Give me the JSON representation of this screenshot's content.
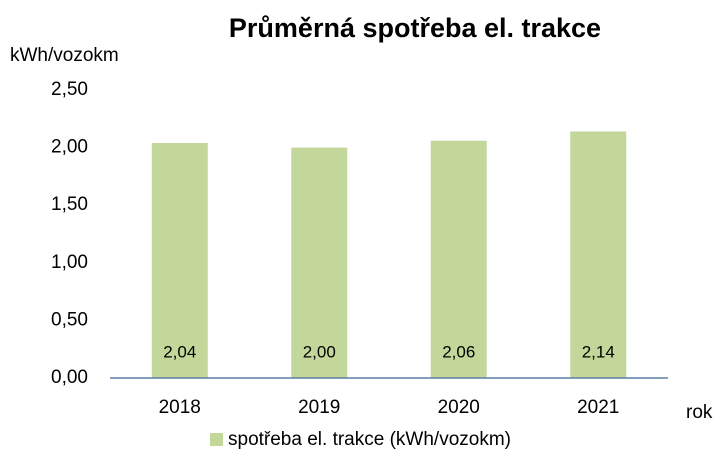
{
  "chart_data": {
    "type": "bar",
    "title": "Průměrná spotřeba el. trakce",
    "y_label": "kWh/vozokm",
    "x_label": "rok",
    "categories": [
      "2018",
      "2019",
      "2020",
      "2021"
    ],
    "series": [
      {
        "name": "spotřeba el. trakce (kWh/vozokm)",
        "color": "#c4d79b",
        "values": [
          2.04,
          2.0,
          2.06,
          2.14
        ],
        "value_labels": [
          "2,04",
          "2,00",
          "2,06",
          "2,14"
        ]
      }
    ],
    "ylim": [
      0,
      2.5
    ],
    "yticks": [
      {
        "value": 0,
        "label": "0,00"
      },
      {
        "value": 0.5,
        "label": "0,50"
      },
      {
        "value": 1,
        "label": "1,00"
      },
      {
        "value": 1.5,
        "label": "1,50"
      },
      {
        "value": 2,
        "label": "2,00"
      },
      {
        "value": 2.5,
        "label": "2,50"
      }
    ],
    "grid": false,
    "legend": "bottom"
  }
}
